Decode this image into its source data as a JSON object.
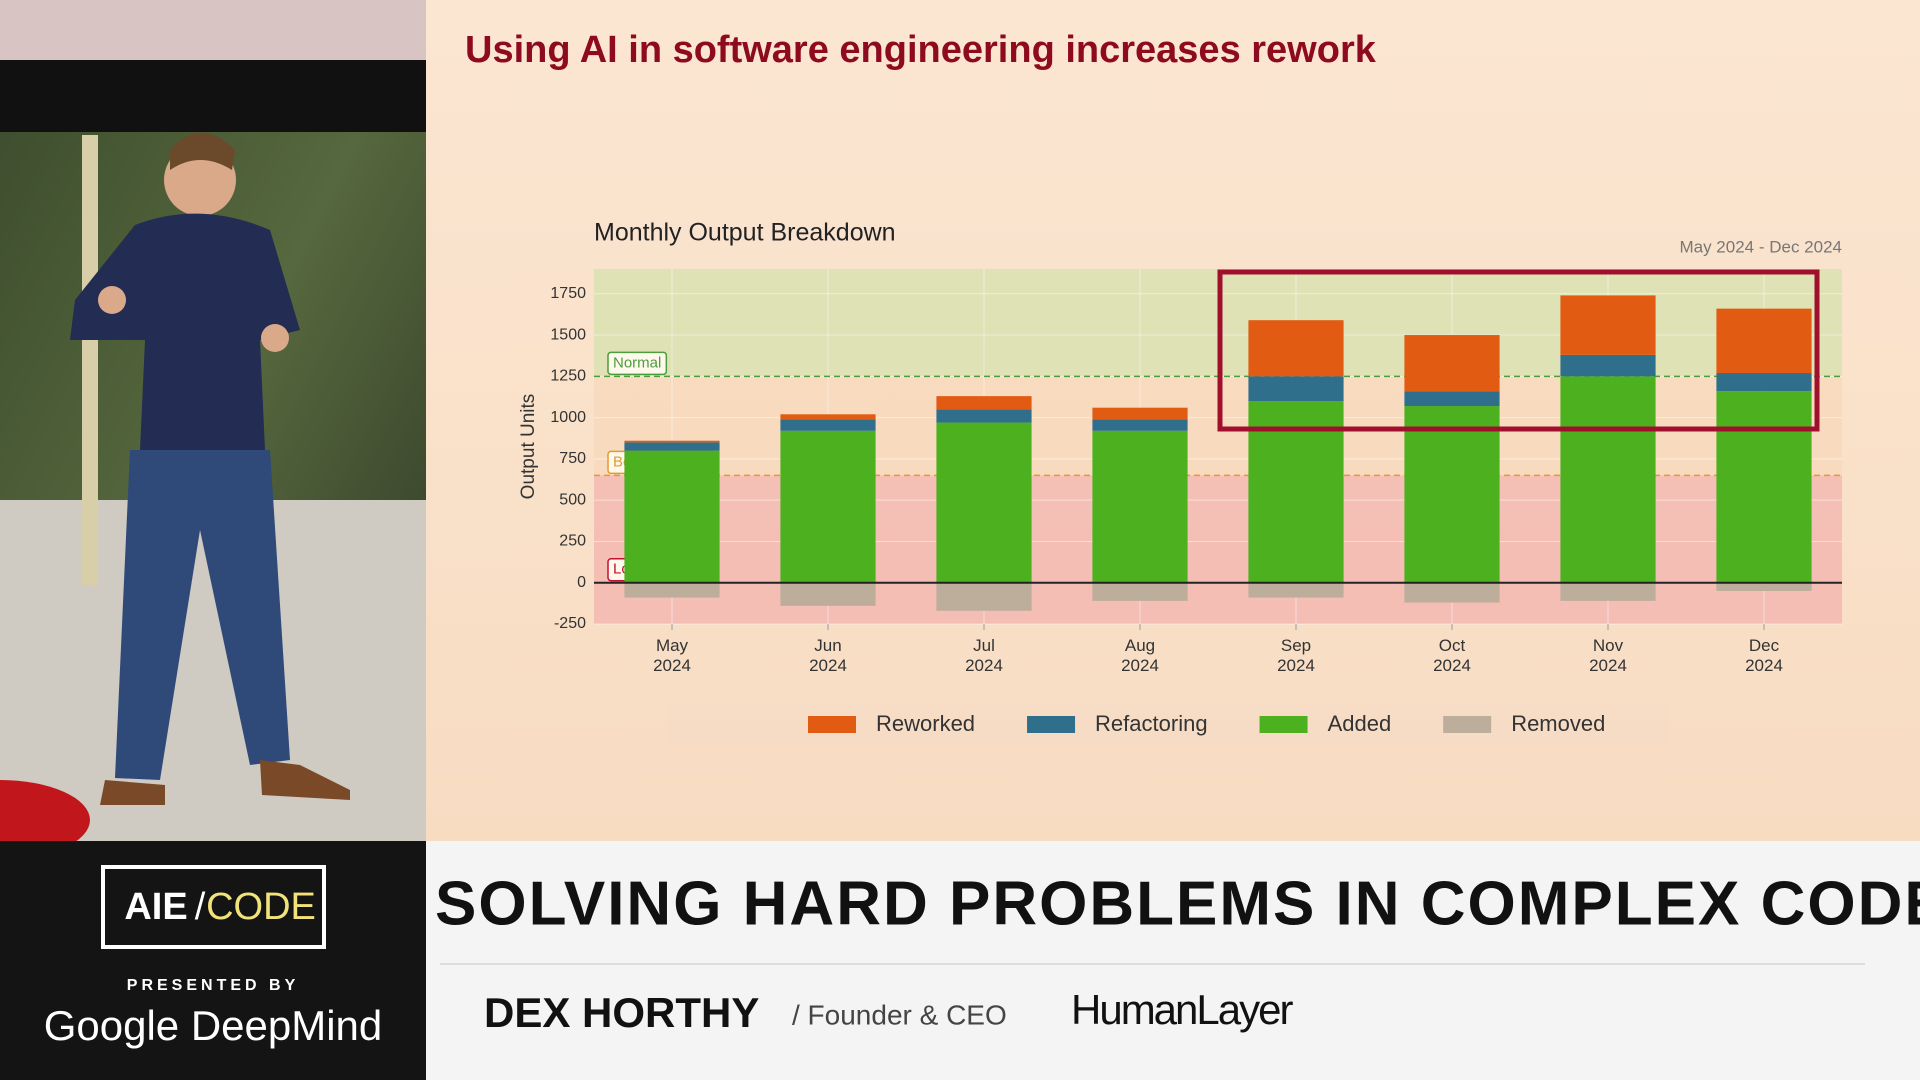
{
  "slide": {
    "title": "Using AI in software engineering increases rework"
  },
  "chart_data": {
    "type": "bar",
    "stacked": true,
    "title": "Monthly Output Breakdown",
    "subtitle": "May 2024 - Dec 2024",
    "y_label": "Output Units",
    "categories": [
      "May\n2024",
      "Jun\n2024",
      "Jul\n2024",
      "Aug\n2024",
      "Sep\n2024",
      "Oct\n2024",
      "Nov\n2024",
      "Dec\n2024"
    ],
    "series": [
      {
        "name": "Reworked",
        "color": "#e15b12",
        "values": [
          10,
          30,
          80,
          70,
          340,
          340,
          360,
          390
        ]
      },
      {
        "name": "Refactoring",
        "color": "#2f6f8c",
        "values": [
          50,
          70,
          80,
          70,
          150,
          90,
          130,
          110
        ]
      },
      {
        "name": "Added",
        "color": "#4db01f",
        "values": [
          800,
          920,
          970,
          920,
          1100,
          1070,
          1250,
          1160
        ]
      },
      {
        "name": "Removed",
        "color": "#bcae9b",
        "values": [
          -90,
          -140,
          -170,
          -110,
          -90,
          -120,
          -110,
          -50
        ]
      }
    ],
    "ylim": [
      -250,
      1900
    ],
    "yticks": [
      -250,
      0,
      250,
      500,
      750,
      1000,
      1250,
      1500,
      1750
    ],
    "grid": true,
    "zones": [
      {
        "label": "Normal",
        "from": 1250,
        "line": true,
        "color": "#4a9e3c",
        "fill": "#d8e2b0"
      },
      {
        "label": "Below Average",
        "from": 650,
        "line": true,
        "color": "#e59a2f",
        "fill": "#f8d9bd"
      },
      {
        "label": "Low",
        "from": -250,
        "line": false,
        "color": "#c4102c",
        "fill": "#f3b9b1"
      }
    ]
  },
  "lower_third": {
    "logo_left": "AIE",
    "logo_sep": "/",
    "logo_right": "CODE",
    "presented_by": "PRESENTED BY",
    "sponsor": "Google DeepMind",
    "talk_title": "SOLVING HARD PROBLEMS IN COMPLEX CODE",
    "speaker": "DEX HORTHY",
    "role": "/ Founder & CEO",
    "company": "HumanLayer"
  }
}
